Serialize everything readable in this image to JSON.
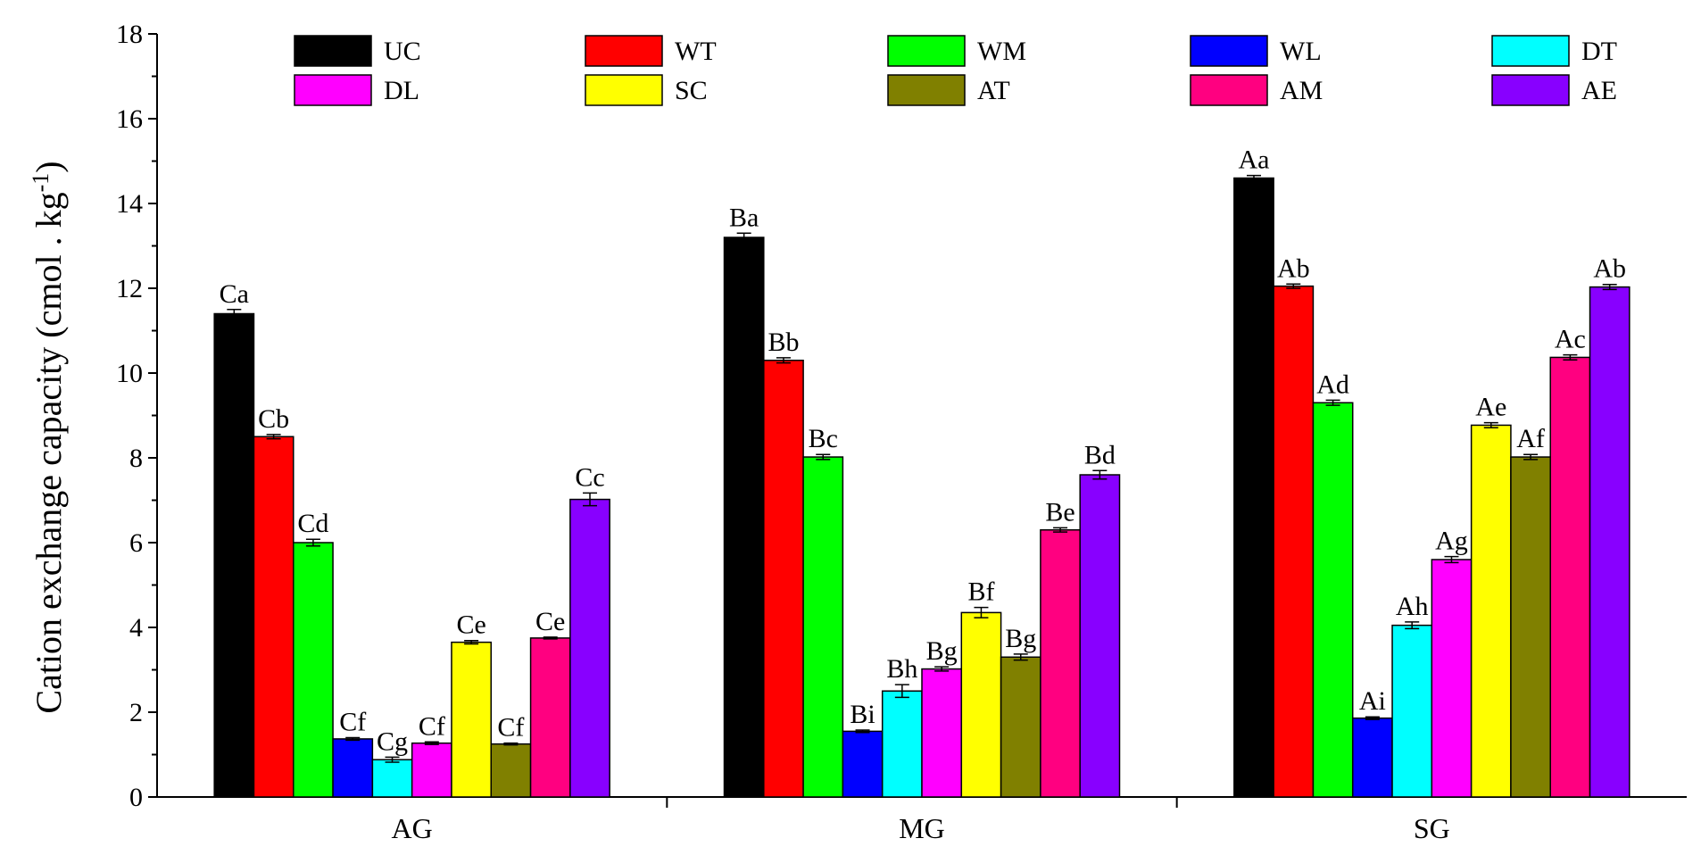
{
  "chart_data": {
    "type": "bar",
    "ylabel": "Cation exchange capacity (cmol . kg",
    "ylabel_sup": "-1",
    "ylabel_close": ")",
    "ylim": [
      0,
      18
    ],
    "yticks": [
      "0",
      "2",
      "4",
      "6",
      "8",
      "10",
      "12",
      "14",
      "16",
      "18"
    ],
    "categories": [
      "AG",
      "MG",
      "SG"
    ],
    "legend_columns": 5,
    "series": [
      {
        "name": "UC",
        "color": "#000000",
        "values": [
          11.4,
          13.2,
          14.6
        ],
        "errors": [
          0.1,
          0.1,
          0.06
        ],
        "labels": [
          "Ca",
          "Ba",
          "Aa"
        ]
      },
      {
        "name": "WT",
        "color": "#ff0000",
        "values": [
          8.5,
          10.3,
          12.05
        ],
        "errors": [
          0.05,
          0.06,
          0.05
        ],
        "labels": [
          "Cb",
          "Bb",
          "Ab"
        ]
      },
      {
        "name": "WM",
        "color": "#00ff00",
        "values": [
          6.0,
          8.02,
          9.3
        ],
        "errors": [
          0.08,
          0.06,
          0.06
        ],
        "labels": [
          "Cd",
          "Bc",
          "Ad"
        ]
      },
      {
        "name": "WL",
        "color": "#0000ff",
        "values": [
          1.37,
          1.55,
          1.86
        ],
        "errors": [
          0.03,
          0.03,
          0.03
        ],
        "labels": [
          "Cf",
          "Bi",
          "Ai"
        ]
      },
      {
        "name": "DT",
        "color": "#00ffff",
        "values": [
          0.88,
          2.5,
          4.05
        ],
        "errors": [
          0.06,
          0.15,
          0.08
        ],
        "labels": [
          "Cg",
          "Bh",
          "Ah"
        ]
      },
      {
        "name": "DL",
        "color": "#ff00ff",
        "values": [
          1.27,
          3.02,
          5.6
        ],
        "errors": [
          0.03,
          0.05,
          0.07
        ],
        "labels": [
          "Cf",
          "Bg",
          "Ag"
        ]
      },
      {
        "name": "SC",
        "color": "#ffff00",
        "values": [
          3.65,
          4.35,
          8.77
        ],
        "errors": [
          0.04,
          0.12,
          0.06
        ],
        "labels": [
          "Ce",
          "Bf",
          "Ae"
        ]
      },
      {
        "name": "AT",
        "color": "#808000",
        "values": [
          1.25,
          3.3,
          8.02
        ],
        "errors": [
          0.02,
          0.07,
          0.06
        ],
        "labels": [
          "Cf",
          "Bg",
          "Af"
        ]
      },
      {
        "name": "AM",
        "color": "#ff0080",
        "values": [
          3.75,
          6.3,
          10.37
        ],
        "errors": [
          0.02,
          0.05,
          0.06
        ],
        "labels": [
          "Ce",
          "Be",
          "Ac"
        ]
      },
      {
        "name": "AE",
        "color": "#8800ff",
        "values": [
          7.02,
          7.6,
          12.03
        ],
        "errors": [
          0.15,
          0.1,
          0.06
        ],
        "labels": [
          "Cc",
          "Bd",
          "Ab"
        ]
      }
    ]
  }
}
